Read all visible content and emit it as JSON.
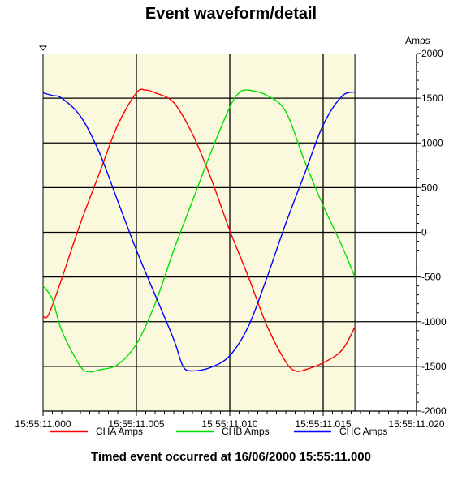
{
  "chart_data": {
    "type": "line",
    "title": "Event waveform/detail",
    "ylabel": "Amps",
    "xlabel": "",
    "x_tick_labels": [
      "15:55:11.000",
      "15:55:11.005",
      "15:55:11.010",
      "15:55:11.015",
      "15:55:11.020"
    ],
    "y_ticks": [
      -2000,
      -1500,
      -1000,
      -500,
      0,
      500,
      1000,
      1500,
      2000
    ],
    "xlim_ms": [
      0,
      20
    ],
    "ylim": [
      -2000,
      2000
    ],
    "x_unit": "milliseconds after 15:55:11.000",
    "data_end_ms": 16.7,
    "grid": true,
    "legend_position": "bottom",
    "plot_background": "#fbf9dd",
    "series": [
      {
        "name": "CHA Amps",
        "color": "#ff0000",
        "x": [
          0.0,
          0.3,
          1.0,
          2.0,
          3.0,
          4.0,
          5.0,
          5.5,
          6.0,
          7.0,
          8.0,
          9.0,
          10.0,
          11.0,
          12.0,
          13.0,
          13.5,
          14.0,
          15.0,
          16.0,
          16.7
        ],
        "values": [
          -940,
          -920,
          -520,
          100,
          650,
          1200,
          1560,
          1590,
          1560,
          1450,
          1100,
          600,
          20,
          -500,
          -1050,
          -1450,
          -1550,
          -1540,
          -1460,
          -1320,
          -1060
        ]
      },
      {
        "name": "CHB Amps",
        "color": "#00e000",
        "x": [
          0.0,
          0.5,
          1.0,
          2.0,
          2.5,
          3.0,
          4.0,
          5.0,
          6.0,
          7.0,
          8.0,
          9.0,
          10.0,
          10.5,
          11.0,
          12.0,
          13.0,
          14.0,
          15.0,
          16.0,
          16.7
        ],
        "values": [
          -600,
          -750,
          -1100,
          -1500,
          -1560,
          -1540,
          -1480,
          -1250,
          -800,
          -200,
          350,
          900,
          1400,
          1560,
          1590,
          1530,
          1350,
          800,
          300,
          -150,
          -500
        ]
      },
      {
        "name": "CHC Amps",
        "color": "#0000ff",
        "x": [
          0.0,
          0.5,
          1.0,
          2.0,
          3.0,
          4.0,
          5.0,
          6.0,
          7.0,
          7.5,
          8.0,
          9.0,
          10.0,
          11.0,
          12.0,
          13.0,
          14.0,
          15.0,
          16.0,
          16.7
        ],
        "values": [
          1560,
          1530,
          1500,
          1300,
          900,
          350,
          -200,
          -700,
          -1200,
          -1500,
          -1550,
          -1510,
          -1380,
          -1050,
          -500,
          100,
          650,
          1200,
          1520,
          1570
        ]
      }
    ]
  },
  "footer": "Timed event occurred at 16/06/2000 15:55:11.000"
}
